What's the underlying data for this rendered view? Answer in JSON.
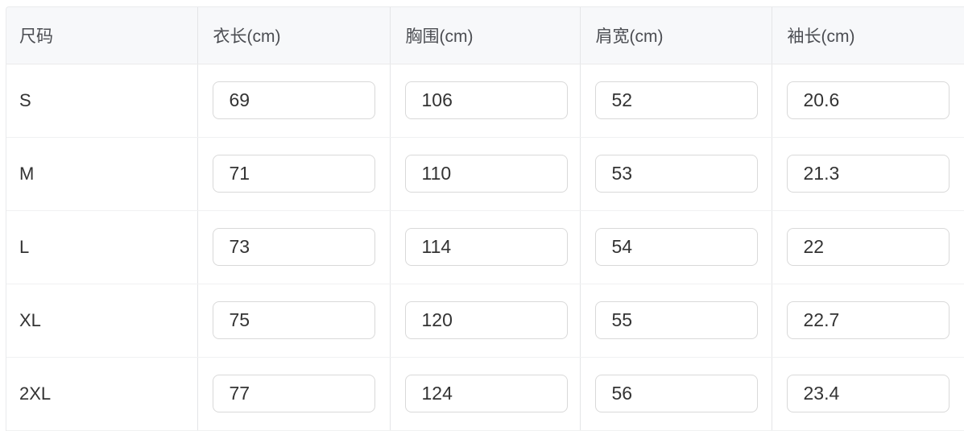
{
  "table": {
    "columns": [
      {
        "key": "size",
        "label": "尺码"
      },
      {
        "key": "length",
        "label": "衣长(cm)"
      },
      {
        "key": "chest",
        "label": "胸围(cm)"
      },
      {
        "key": "shoulder",
        "label": "肩宽(cm)"
      },
      {
        "key": "sleeve",
        "label": "袖长(cm)"
      }
    ],
    "rows": [
      {
        "size": "S",
        "length": "69",
        "chest": "106",
        "shoulder": "52",
        "sleeve": "20.6"
      },
      {
        "size": "M",
        "length": "71",
        "chest": "110",
        "shoulder": "53",
        "sleeve": "21.3"
      },
      {
        "size": "L",
        "length": "73",
        "chest": "114",
        "shoulder": "54",
        "sleeve": "22"
      },
      {
        "size": "XL",
        "length": "75",
        "chest": "120",
        "shoulder": "55",
        "sleeve": "22.7"
      },
      {
        "size": "2XL",
        "length": "77",
        "chest": "124",
        "shoulder": "56",
        "sleeve": "23.4"
      }
    ]
  },
  "colors": {
    "header_bg": "#f7f8fa",
    "header_text": "#4b4d52",
    "body_text": "#333333",
    "input_border": "#d9d9d9",
    "column_divider": "#e4e5e7",
    "row_divider": "#f0f1f2",
    "outer_border": "#e9eaec",
    "page_bg": "#ffffff"
  }
}
